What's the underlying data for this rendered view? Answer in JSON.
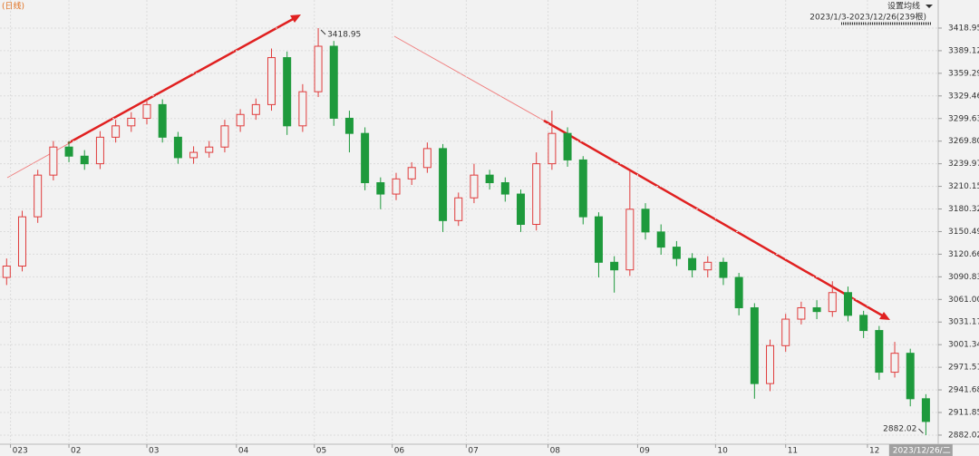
{
  "chart_data": {
    "type": "candlestick",
    "period_label": "(日线)",
    "button": "设置均线",
    "range_label": "2023/1/3-2023/12/26(239根)",
    "cursor_date": "2023/12/26/二",
    "up_color": "#e03c3c",
    "down_color": "#1e9a3c",
    "grid": true,
    "xlim": [
      0,
      239
    ],
    "ylim": [
      2870,
      3456
    ],
    "yticks": [
      3418.95,
      3389.12,
      3359.29,
      3329.46,
      3299.63,
      {
        "value": 3269.8,
        "label": "3269.80"
      },
      3239.97,
      3210.15,
      3180.32,
      3150.49,
      3120.66,
      3090.83,
      {
        "value": 3061,
        "label": "3061.00"
      },
      3031.17,
      3001.34,
      2971.51,
      2941.68,
      2911.85,
      2882.02
    ],
    "xticks": [
      {
        "value": 2,
        "label": "023"
      },
      {
        "value": 17,
        "label": "02"
      },
      {
        "value": 37,
        "label": "03"
      },
      {
        "value": 60,
        "label": "04"
      },
      {
        "value": 80,
        "label": "05"
      },
      {
        "value": 100,
        "label": "06"
      },
      {
        "value": 119,
        "label": "07"
      },
      {
        "value": 140,
        "label": "08"
      },
      {
        "value": 163,
        "label": "09"
      },
      {
        "value": 183,
        "label": "10"
      },
      {
        "value": 201,
        "label": "11"
      },
      {
        "value": 222,
        "label": "12"
      }
    ],
    "cursor_x": 235,
    "x": [
      1,
      5,
      9,
      13,
      17,
      21,
      25,
      29,
      33,
      37,
      41,
      45,
      49,
      53,
      57,
      61,
      65,
      69,
      73,
      77,
      81,
      85,
      89,
      93,
      97,
      101,
      105,
      109,
      113,
      117,
      121,
      125,
      129,
      133,
      137,
      141,
      145,
      149,
      153,
      157,
      161,
      165,
      169,
      173,
      177,
      181,
      185,
      189,
      193,
      197,
      201,
      205,
      209,
      213,
      217,
      221,
      225,
      229,
      233,
      237
    ],
    "open": [
      3090,
      3105,
      3170,
      3225,
      3262,
      3250,
      3240,
      3275,
      3290,
      3300,
      3318,
      3275,
      3248,
      3255,
      3262,
      3290,
      3305,
      3318,
      3380,
      3290,
      3335,
      3395,
      3300,
      3280,
      3215,
      3200,
      3220,
      3235,
      3260,
      3165,
      3195,
      3225,
      3215,
      3200,
      3160,
      3240,
      3280,
      3245,
      3170,
      3110,
      3100,
      3180,
      3150,
      3130,
      3115,
      3100,
      3110,
      3090,
      3050,
      2950,
      3000,
      3035,
      3050,
      3045,
      3070,
      3040,
      3020,
      2965,
      2990,
      2930
    ],
    "high": [
      3115,
      3178,
      3232,
      3270,
      3270,
      3258,
      3283,
      3298,
      3308,
      3326,
      3325,
      3282,
      3263,
      3270,
      3298,
      3312,
      3326,
      3392,
      3388,
      3345,
      3418.95,
      3402,
      3310,
      3288,
      3222,
      3228,
      3242,
      3268,
      3266,
      3202,
      3240,
      3232,
      3222,
      3206,
      3255,
      3310,
      3288,
      3250,
      3176,
      3118,
      3230,
      3188,
      3160,
      3138,
      3122,
      3118,
      3116,
      3096,
      3056,
      3008,
      3042,
      3058,
      3060,
      3085,
      3078,
      3046,
      3026,
      3005,
      2996,
      2936
    ],
    "low": [
      3080,
      3098,
      3162,
      3218,
      3242,
      3232,
      3233,
      3268,
      3282,
      3292,
      3268,
      3240,
      3240,
      3248,
      3255,
      3282,
      3298,
      3310,
      3278,
      3282,
      3328,
      3290,
      3255,
      3205,
      3180,
      3192,
      3212,
      3228,
      3150,
      3158,
      3188,
      3206,
      3190,
      3150,
      3152,
      3232,
      3236,
      3160,
      3090,
      3070,
      3092,
      3140,
      3120,
      3105,
      3090,
      3090,
      3080,
      3040,
      2930,
      2940,
      2992,
      3028,
      3035,
      3038,
      3032,
      3010,
      2955,
      2958,
      2920,
      2882.02
    ],
    "close": [
      3105,
      3170,
      3225,
      3262,
      3250,
      3240,
      3275,
      3290,
      3300,
      3318,
      3275,
      3248,
      3255,
      3262,
      3290,
      3305,
      3318,
      3380,
      3290,
      3335,
      3395,
      3300,
      3280,
      3215,
      3200,
      3220,
      3235,
      3260,
      3165,
      3195,
      3225,
      3215,
      3200,
      3160,
      3240,
      3280,
      3245,
      3170,
      3110,
      3100,
      3180,
      3150,
      3130,
      3115,
      3100,
      3110,
      3090,
      3050,
      2950,
      3000,
      3035,
      3050,
      3045,
      3070,
      3040,
      3020,
      2965,
      2990,
      2930,
      2900
    ]
  }
}
